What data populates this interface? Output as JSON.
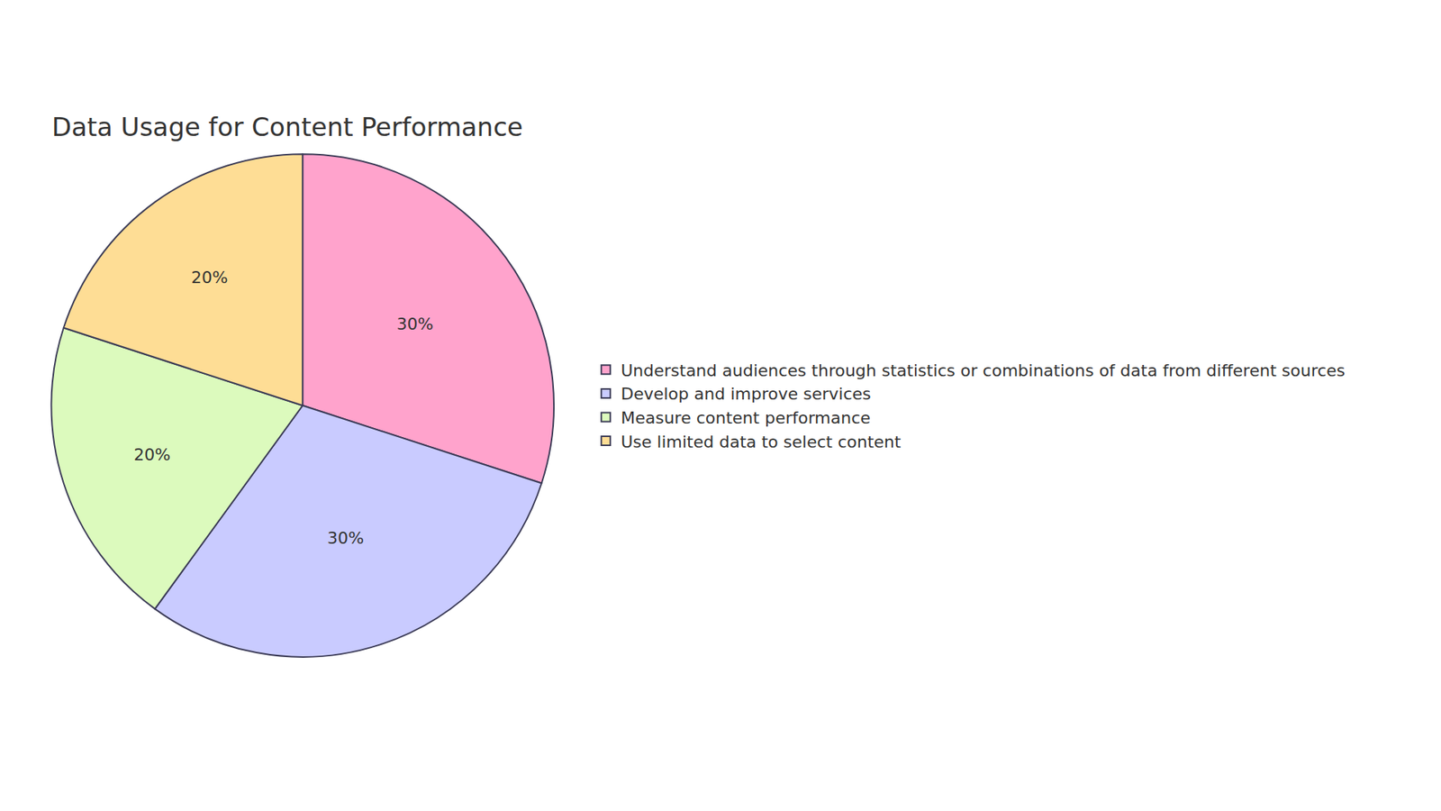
{
  "chart_data": {
    "type": "pie",
    "title": "Data Usage for Content Performance",
    "categories": [
      "Understand audiences through statistics or combinations of data from different sources",
      "Develop and improve services",
      "Measure content performance",
      "Use limited data to select content"
    ],
    "values": [
      30,
      30,
      20,
      20
    ],
    "value_labels": [
      "30%",
      "30%",
      "20%",
      "20%"
    ],
    "colors": [
      "#FFA3CC",
      "#C9CBFF",
      "#DCFABD",
      "#FEDD95"
    ],
    "data_labels": true,
    "legend": "right"
  }
}
